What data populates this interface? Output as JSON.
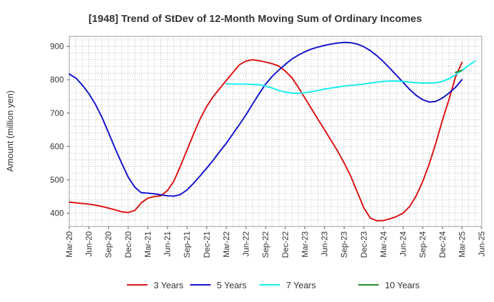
{
  "chart_data": {
    "type": "line",
    "title": "[1948]  Trend of StDev of 12-Month Moving Sum of Ordinary Incomes",
    "xlabel": "",
    "ylabel": "Amount (million yen)",
    "ylim": [
      360,
      930
    ],
    "yticks": [
      400,
      500,
      600,
      700,
      800,
      900
    ],
    "x_ticks": [
      "Mar-20",
      "Jun-20",
      "Sep-20",
      "Dec-20",
      "Mar-21",
      "Jun-21",
      "Sep-21",
      "Dec-21",
      "Mar-22",
      "Jun-22",
      "Sep-22",
      "Dec-22",
      "Mar-23",
      "Jun-23",
      "Sep-23",
      "Dec-23",
      "Mar-24",
      "Jun-24",
      "Sep-24",
      "Dec-24",
      "Mar-25",
      "Jun-25"
    ],
    "grid": true,
    "legend_position": "bottom",
    "series": [
      {
        "name": "3 Years",
        "color": "#dd1111",
        "start_index": 0,
        "values": [
          433,
          431,
          429,
          427,
          424,
          420,
          415,
          410,
          404,
          402,
          408,
          431,
          445,
          450,
          452,
          468,
          497,
          542,
          590,
          638,
          683,
          720,
          750,
          774,
          798,
          822,
          845,
          856,
          860,
          857,
          853,
          848,
          841,
          826,
          806,
          777,
          745,
          713,
          681,
          650,
          618,
          586,
          550,
          511,
          463,
          416,
          385,
          377,
          378,
          383,
          390,
          400,
          420,
          452,
          495,
          548,
          610,
          678,
          740,
          808,
          852
        ]
      },
      {
        "name": "5 Years",
        "color": "#1111cc",
        "start_index": 0,
        "values": [
          817,
          805,
          784,
          758,
          726,
          687,
          641,
          594,
          550,
          508,
          478,
          461,
          460,
          458,
          455,
          452,
          451,
          456,
          470,
          490,
          512,
          535,
          559,
          585,
          610,
          638,
          666,
          695,
          727,
          758,
          787,
          810,
          829,
          846,
          862,
          874,
          884,
          892,
          898,
          903,
          907,
          910,
          912,
          911,
          907,
          899,
          887,
          872,
          854,
          834,
          813,
          792,
          771,
          753,
          740,
          733,
          735,
          745,
          760,
          777,
          800
        ]
      },
      {
        "name": "7 Years",
        "color": "#11eeee",
        "start_index": 24,
        "values": [
          788,
          787,
          787,
          787,
          786,
          785,
          781,
          775,
          768,
          763,
          760,
          759,
          761,
          764,
          768,
          772,
          775,
          778,
          781,
          783,
          785,
          787,
          790,
          793,
          795,
          796,
          796,
          795,
          793,
          791,
          790,
          790,
          791,
          795,
          803,
          815,
          828,
          843,
          856
        ]
      },
      {
        "name": "10 Years",
        "color": "#228822",
        "start_index": 59,
        "values": [
          822,
          828
        ]
      }
    ]
  }
}
